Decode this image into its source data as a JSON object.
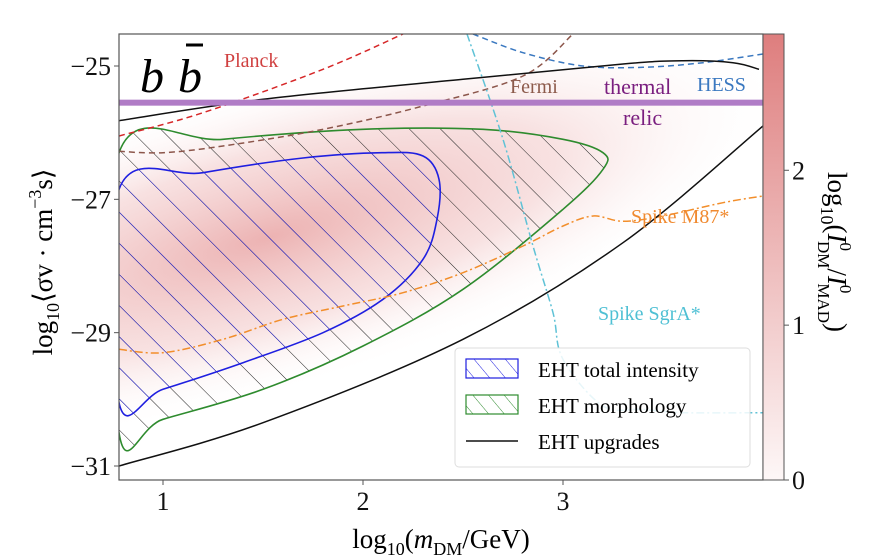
{
  "chart_data": {
    "type": "line",
    "title_label": "b",
    "xlabel": {
      "prefix": "log",
      "sub": "10",
      "open": "(",
      "var": "m",
      "var_sub": "DM",
      "rest": "/GeV)"
    },
    "ylabel": {
      "prefix": "log",
      "sub": "10",
      "body": "⟨σv · cm",
      "sup": "−3",
      "tail": "s⟩"
    },
    "colorbar_label": {
      "prefix": "log",
      "sub": "10",
      "open": "(",
      "I1": "I",
      "I1_sup": "0",
      "I1_sub": "DM",
      "slash": "/",
      "I2": "I",
      "I2_sup": "0",
      "I2_sub": "MAD",
      "close": ")"
    },
    "xlim": [
      0.78,
      4.0
    ],
    "ylim": [
      -31.21,
      -24.52
    ],
    "xticks": [
      1,
      2,
      3
    ],
    "xtick_labels": [
      "1",
      "2",
      "3"
    ],
    "yticks": [
      -25,
      -27,
      -29,
      -31
    ],
    "ytick_labels": [
      "−25",
      "−27",
      "−29",
      "−31"
    ],
    "colorbar": {
      "range": [
        0,
        2.88
      ],
      "ticks": [
        0,
        1,
        2
      ],
      "tick_labels": [
        "0",
        "1",
        "2"
      ],
      "color_high": "#de7e7e",
      "color_low": "#fdf7f7"
    },
    "thermal_relic": {
      "y": -25.55,
      "color": "#b07cc6",
      "label1": "thermal",
      "label2": "relic",
      "label_color": "#7a1e7f"
    },
    "series": [
      {
        "name": "Planck",
        "color": "#d62728",
        "style": "dashed",
        "x": [
          0.78,
          1.2,
          1.8,
          2.2
        ],
        "y": [
          -26.05,
          -25.7,
          -25.05,
          -24.52
        ]
      },
      {
        "name": "Fermi",
        "color": "#8c564b",
        "style": "dashed",
        "x": [
          0.78,
          1.0,
          1.3,
          1.8,
          2.3,
          2.8,
          3.05
        ],
        "y": [
          -26.28,
          -26.3,
          -26.2,
          -25.95,
          -25.6,
          -25.15,
          -24.52
        ]
      },
      {
        "name": "HESS",
        "color": "#3a78c0",
        "style": "dashed",
        "x": [
          2.55,
          2.8,
          3.1,
          3.4,
          3.7,
          4.0
        ],
        "y": [
          -24.52,
          -24.8,
          -25.0,
          -25.02,
          -24.95,
          -24.82
        ]
      },
      {
        "name": "Spike M87*",
        "color": "#f28e2b",
        "style": "dashdot",
        "x": [
          0.78,
          1.0,
          1.3,
          1.6,
          1.9,
          2.2,
          2.5,
          2.8,
          3.0,
          3.15,
          3.3,
          3.5,
          3.8,
          4.0
        ],
        "y": [
          -29.25,
          -29.3,
          -29.1,
          -28.8,
          -28.6,
          -28.4,
          -28.1,
          -27.7,
          -27.4,
          -27.25,
          -27.33,
          -27.25,
          -27.05,
          -26.95
        ]
      },
      {
        "name": "Spike SgrA*",
        "color": "#5fc2d6",
        "style": "dashdot",
        "x": [
          2.52,
          2.7,
          2.85,
          2.95,
          3.0,
          3.2,
          3.4,
          3.6,
          4.0
        ],
        "y": [
          -24.52,
          -26.1,
          -27.7,
          -28.7,
          -29.4,
          -30.1,
          -30.15,
          -30.2,
          -30.2
        ]
      },
      {
        "name": "EHT upgrades (lower)",
        "color": "#111111",
        "style": "solid",
        "x": [
          0.78,
          1.5,
          2.5,
          3.3,
          4.0
        ],
        "y": [
          -31.0,
          -30.35,
          -29.1,
          -27.65,
          -25.9
        ]
      },
      {
        "name": "EHT upgrades (upper)",
        "color": "#111111",
        "style": "solid",
        "x": [
          0.78,
          1.5,
          2.5,
          3.3,
          3.6,
          3.85,
          3.98
        ],
        "y": [
          -25.82,
          -25.5,
          -25.2,
          -24.97,
          -24.92,
          -24.95,
          -25.05
        ]
      }
    ],
    "regions": [
      {
        "name": "EHT morphology",
        "edge": "#2e8b2e",
        "hatch": "#222222",
        "x": [
          0.78,
          1.3,
          2.0,
          2.6,
          3.0,
          3.2,
          3.2,
          3.0,
          2.5,
          2.0,
          1.5,
          1.0,
          0.78
        ],
        "y": [
          -26.3,
          -26.1,
          -25.95,
          -25.95,
          -26.1,
          -26.3,
          -26.55,
          -27.15,
          -28.35,
          -29.2,
          -29.85,
          -30.3,
          -30.5
        ]
      },
      {
        "name": "EHT total intensity",
        "edge": "#1f1fe0",
        "hatch": "#1f1fe0",
        "x": [
          0.78,
          1.2,
          1.7,
          2.1,
          2.3,
          2.38,
          2.37,
          2.3,
          2.1,
          1.8,
          1.4,
          1.0,
          0.78
        ],
        "y": [
          -26.85,
          -26.6,
          -26.38,
          -26.3,
          -26.35,
          -26.7,
          -27.3,
          -27.9,
          -28.5,
          -29.0,
          -29.45,
          -29.85,
          -30.05
        ]
      }
    ],
    "labels": [
      {
        "text": "Planck",
        "color": "#d04040"
      },
      {
        "text": "Fermi",
        "color": "#8c5a4b"
      },
      {
        "text": "HESS",
        "color": "#3a78c0"
      },
      {
        "text": "Spike M87*",
        "color": "#f08a30"
      },
      {
        "text": "Spike SgrA*",
        "color": "#4fc0d4"
      }
    ],
    "legend": {
      "placement": "lower-right",
      "entries": [
        {
          "label": "EHT total intensity",
          "color": "#1f1fe0",
          "kind": "hatch"
        },
        {
          "label": "EHT morphology",
          "color": "#2e8b2e",
          "kind": "hatch"
        },
        {
          "label": "EHT upgrades",
          "color": "#111111",
          "kind": "line"
        }
      ]
    }
  }
}
